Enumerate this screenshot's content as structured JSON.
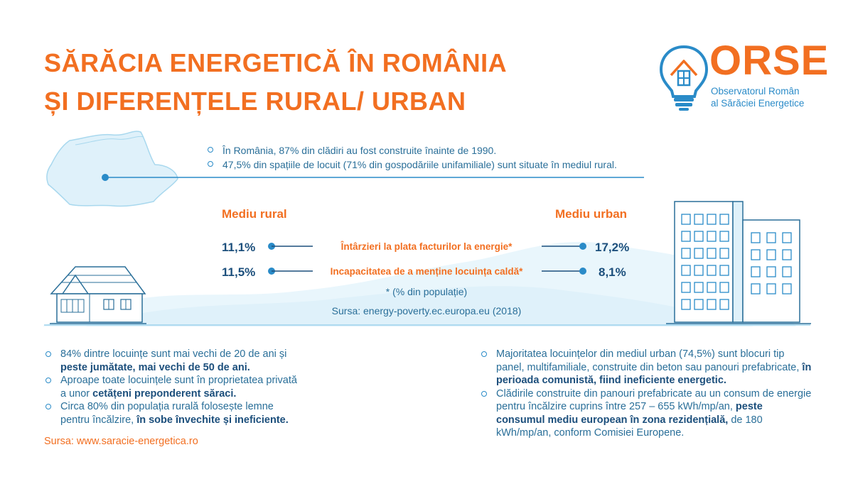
{
  "title": {
    "line1": "SĂRĂCIA ENERGETICĂ ÎN ROMÂNIA",
    "line2": "ȘI DIFERENȚELE RURAL/ URBAN"
  },
  "logo": {
    "name": "ORSE",
    "subtitle_line1": "Observatorul Român",
    "subtitle_line2": "al Sărăciei Energetice"
  },
  "intro": {
    "bullet1": "În România, 87% din clădiri au fost construite înainte de 1990.",
    "bullet2": "47,5% din spațiile de locuit (71% din gospodăriile unifamiliale) sunt situate în mediul rural."
  },
  "comparison": {
    "rural_label": "Mediu rural",
    "urban_label": "Mediu urban",
    "rows": [
      {
        "label": "Întârzieri la plata facturilor la energie*",
        "rural": "11,1%",
        "urban": "17,2%"
      },
      {
        "label": "Incapacitatea de a menține locuința caldă*",
        "rural": "11,5%",
        "urban": "8,1%"
      }
    ],
    "footnote": "* (% din populație)",
    "source": "Sursa: energy-poverty.ec.europa.eu (2018)"
  },
  "rural_facts": {
    "b1_text": "84% dintre locuințe sunt mai vechi de 20 de ani și ",
    "b1_bold": "peste jumătate, mai vechi de 50 de ani.",
    "b2_text": "Aproape toate locuințele sunt în proprietatea privată a unor ",
    "b2_bold": "cetățeni preponderent săraci.",
    "b3_text": "Circa 80% din populația rurală folosește lemne pentru încălzire, ",
    "b3_bold": "în sobe învechite și ineficiente.",
    "source": "Sursa: www.saracie-energetica.ro"
  },
  "urban_facts": {
    "b1_text": "Majoritatea locuințelor din mediul urban (74,5%) sunt blocuri tip panel, multifamiliale, construite din beton sau panouri prefabricate, ",
    "b1_bold": "în perioada comunistă, fiind ineficiente energetic.",
    "b2_text": "Clădirile construite din panouri prefabricate au un consum de energie pentru încălzire cuprins între 257 – 655 kWh/mp/an, ",
    "b2_bold": "peste consumul mediu european în zona rezidențială,",
    "b2_tail": " de 180 kWh/mp/an, conform Comisiei Europene."
  },
  "colors": {
    "accent_orange": "#f26f21",
    "primary_blue": "#2a8bc8",
    "dark_blue": "#1c4f7c",
    "light_blue": "#e4f4fb"
  },
  "icons": [
    "romania-map-icon",
    "lightbulb-house-icon",
    "rural-house-icon",
    "apartment-blocks-icon"
  ]
}
